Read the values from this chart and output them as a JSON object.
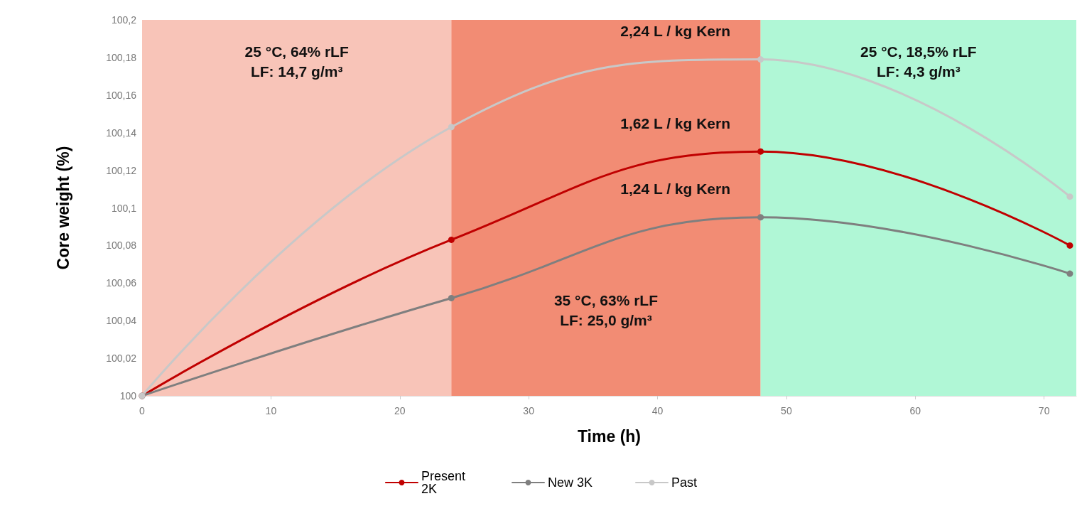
{
  "chart_data": {
    "type": "line",
    "xlabel": "Time (h)",
    "ylabel": "Core weight (%)",
    "x": [
      0,
      24,
      48,
      72
    ],
    "series": [
      {
        "name": "Present 2K",
        "color": "#c00000",
        "values": [
          100,
          100.083,
          100.13,
          100.08
        ]
      },
      {
        "name": "New 3K",
        "color": "#7f7f7f",
        "values": [
          100,
          100.052,
          100.095,
          100.065
        ]
      },
      {
        "name": "Past",
        "color": "#c8c8c8",
        "values": [
          100,
          100.143,
          100.179,
          100.106
        ]
      }
    ],
    "xlim": [
      0,
      72.5
    ],
    "xticks": [
      0,
      10,
      20,
      30,
      40,
      50,
      60,
      70
    ],
    "ylim": [
      100,
      100.2
    ],
    "yticks": [
      100,
      {
        "value": 100.02,
        "label": "100,02"
      },
      {
        "value": 100.04,
        "label": "100,04"
      },
      {
        "value": 100.06,
        "label": "100,06"
      },
      {
        "value": 100.08,
        "label": "100,08"
      },
      {
        "value": 100.1,
        "label": "100,1"
      },
      {
        "value": 100.12,
        "label": "100,12"
      },
      {
        "value": 100.14,
        "label": "100,14"
      },
      {
        "value": 100.16,
        "label": "100,16"
      },
      {
        "value": 100.18,
        "label": "100,18"
      },
      {
        "value": 100.2,
        "label": "100,2"
      }
    ],
    "bands": [
      {
        "axis": "x",
        "from": 0,
        "to": 24,
        "color": "#f8c4b8",
        "label": "25 °C, 64% rLF\nLF: 14,7 g/m³"
      },
      {
        "axis": "x",
        "from": 24,
        "to": 48,
        "color": "#f28c74",
        "label": "35 °C, 63% rLF\nLF: 25,0 g/m³"
      },
      {
        "axis": "x",
        "from": 48,
        "to": 72.5,
        "color": "#b0f7d6",
        "label": "25 °C, 18,5% rLF\nLF: 4,3 g/m³"
      }
    ],
    "annotations": [
      "2,24 L / kg Kern",
      "1,62 L / kg Kern",
      "1,24 L / kg Kern"
    ],
    "marker": "circle",
    "line_style": "solid",
    "grid": false,
    "legend": "bottom"
  }
}
